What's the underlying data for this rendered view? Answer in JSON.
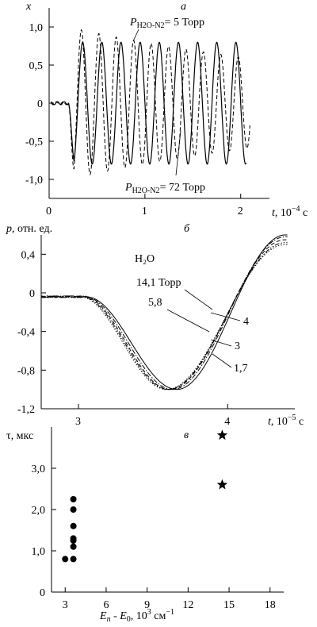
{
  "chart_data": [
    {
      "id": "a",
      "type": "line",
      "panel_letter": "а",
      "ylabel": "x",
      "xlabel": "t, 10⁻⁴ с",
      "xlim": [
        0,
        2.3
      ],
      "ylim": [
        -1.25,
        1.25
      ],
      "xticks": [
        "0",
        "1",
        "2"
      ],
      "yticks": [
        "1,0",
        "0,5",
        "0",
        "-0,5",
        "-1,0"
      ],
      "series": [
        {
          "name": "P_{H2O-N2} = 5 Торр",
          "style": "solid",
          "onset": 0.2,
          "period": 0.2,
          "amplitude": 0.8,
          "decay": 0
        },
        {
          "name": "P_{H2O-N2} = 72 Торр",
          "style": "dashed",
          "onset": 0.2,
          "period": 0.182,
          "amplitude": 1.0,
          "decay": 0.28
        }
      ],
      "annotations": {
        "top": {
          "p": "P",
          "sub": "H2O-N2",
          "rest": "= 5 Торр"
        },
        "bottom": {
          "p": "P",
          "sub": "H2O-N2",
          "rest": "= 72 Торр"
        }
      }
    },
    {
      "id": "b",
      "type": "line",
      "panel_letter": "б",
      "ylabel": "p, отн. ед.",
      "xlabel": "t, 10⁻⁵ с",
      "title": "H₂O",
      "xlim": [
        2.75,
        4.45
      ],
      "ylim": [
        -1.2,
        0.6
      ],
      "xticks": [
        "3",
        "4"
      ],
      "yticks": [
        "0,4",
        "0",
        "-0,4",
        "-0,8",
        "-1,2"
      ],
      "series": [
        {
          "name": "1,7",
          "style": "solid",
          "min_t": 3.66,
          "cross_t": 3.98,
          "end": 0.6
        },
        {
          "name": "3",
          "style": "dashdot",
          "min_t": 3.63,
          "cross_t": 3.92,
          "end": 0.58
        },
        {
          "name": "4",
          "style": "dashed",
          "min_t": 3.61,
          "cross_t": 3.89,
          "end": 0.55
        },
        {
          "name": "5,8",
          "style": "dashdotdot",
          "min_t": 3.6,
          "cross_t": 3.87,
          "end": 0.52
        },
        {
          "name": "14,1",
          "style": "dotted",
          "min_t": 3.59,
          "cross_t": 3.85,
          "end": 0.5
        }
      ],
      "labels": {
        "p141": "14,1 Торр",
        "p58": "5,8",
        "p4": "4",
        "p3": "3",
        "p17": "1,7"
      }
    },
    {
      "id": "c",
      "type": "scatter",
      "panel_letter": "в",
      "ylabel": "τ, мкс",
      "xlabel": "E_n - E_0, 10³ см⁻¹",
      "xlim": [
        2,
        19
      ],
      "ylim": [
        0,
        4
      ],
      "xticks": [
        "3",
        "6",
        "9",
        "12",
        "15",
        "18"
      ],
      "yticks": [
        "0",
        "1,0",
        "2,0",
        "3,0"
      ],
      "series": [
        {
          "name": "circles",
          "marker": "circle",
          "points": [
            [
              3.0,
              0.8
            ],
            [
              3.6,
              0.8
            ],
            [
              3.6,
              1.1
            ],
            [
              3.6,
              1.25
            ],
            [
              3.6,
              1.3
            ],
            [
              3.6,
              1.6
            ],
            [
              3.6,
              2.0
            ],
            [
              3.6,
              2.25
            ]
          ]
        },
        {
          "name": "stars",
          "marker": "star",
          "points": [
            [
              14.5,
              3.8
            ],
            [
              14.5,
              2.6
            ]
          ]
        }
      ]
    }
  ]
}
